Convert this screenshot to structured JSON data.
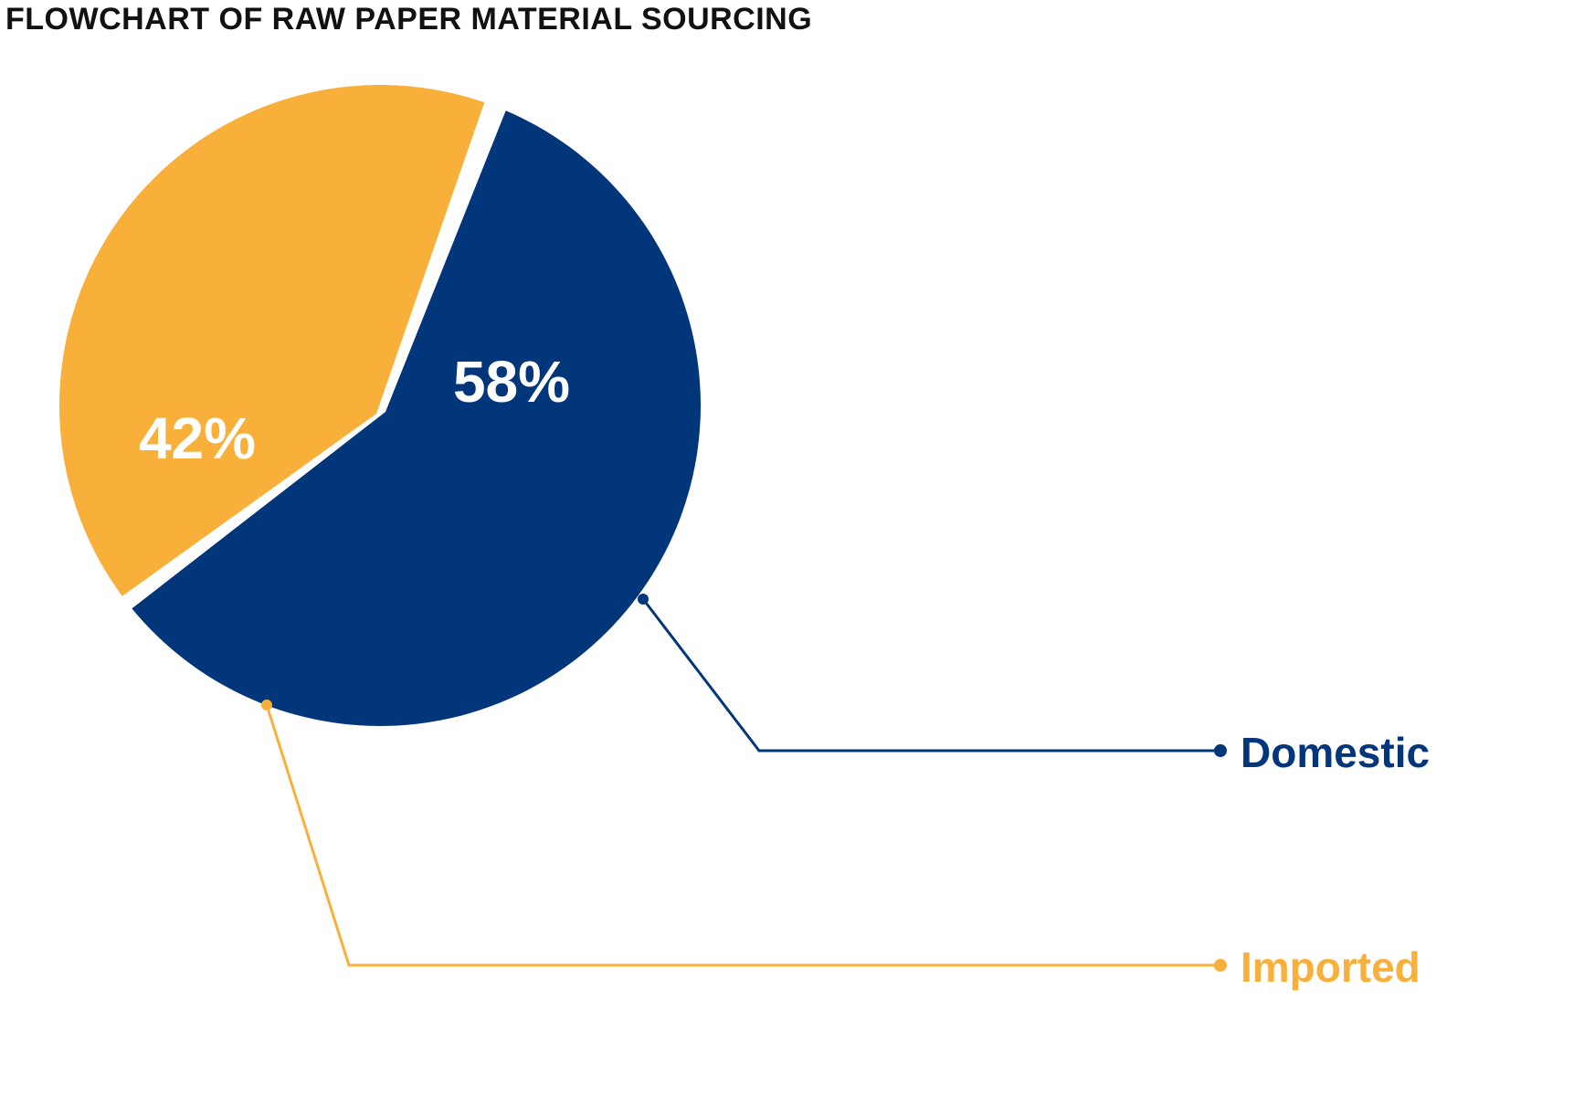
{
  "title": "FLOWCHART OF RAW PAPER MATERIAL SOURCING",
  "colors": {
    "domestic": "#02367A",
    "imported": "#F9B03A"
  },
  "chart_data": {
    "type": "pie",
    "title": "FLOWCHART OF RAW PAPER MATERIAL SOURCING",
    "slices": [
      {
        "label": "Domestic",
        "value": 58,
        "value_label": "58%",
        "color": "#02367A"
      },
      {
        "label": "Imported",
        "value": 42,
        "value_label": "42%",
        "color": "#F9B03A"
      }
    ],
    "legend_position": "right-bottom callouts"
  }
}
